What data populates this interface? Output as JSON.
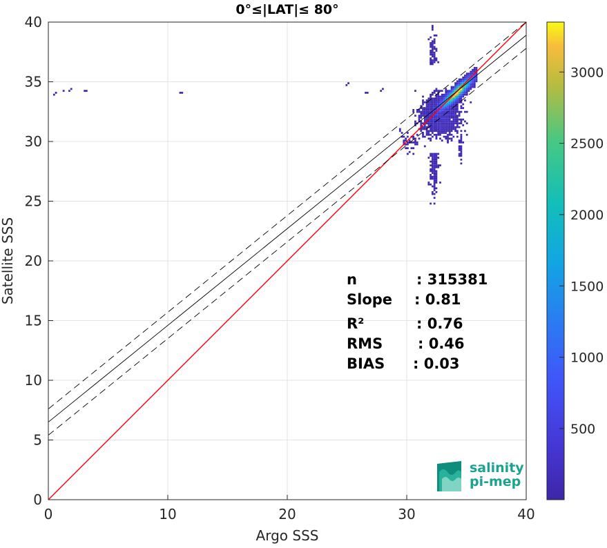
{
  "chart_data": {
    "type": "heatmap",
    "title": "0°≤|LAT|≤ 80°",
    "xlabel": "Argo SSS",
    "ylabel": "Satellite SSS",
    "xlim": [
      0,
      40
    ],
    "ylim": [
      0,
      40
    ],
    "xticks": [
      0,
      10,
      20,
      30,
      40
    ],
    "yticks": [
      0,
      5,
      10,
      15,
      20,
      25,
      30,
      35,
      40
    ],
    "grid": true,
    "colormap": "parula",
    "colorbar": {
      "min": 1,
      "max": 3350,
      "ticks": [
        500,
        1000,
        1500,
        2000,
        2500,
        3000
      ]
    },
    "density": {
      "main_cluster": {
        "center_x": 34.5,
        "center_y": 34.4,
        "peak_count": 3350
      },
      "spread_x": [
        30.5,
        36
      ],
      "spread_y": [
        24.8,
        40
      ],
      "outlier_points": [
        [
          0.5,
          33.9
        ],
        [
          1.2,
          34.2
        ],
        [
          1.8,
          34.3
        ],
        [
          3.0,
          34.2
        ],
        [
          11.0,
          34.0
        ],
        [
          25.0,
          34.8
        ],
        [
          26.5,
          34.0
        ],
        [
          27.8,
          34.3
        ]
      ]
    },
    "lines": [
      {
        "name": "one-to-one",
        "color": "#ff0000",
        "style": "solid",
        "slope": 1.0,
        "intercept": 0.0
      },
      {
        "name": "regression",
        "color": "#000000",
        "style": "solid",
        "slope": 0.81,
        "intercept": 6.5
      },
      {
        "name": "regression-plus-band",
        "color": "#000000",
        "style": "dashed",
        "slope": 0.81,
        "intercept": 7.6
      },
      {
        "name": "regression-minus-band",
        "color": "#000000",
        "style": "dashed",
        "slope": 0.81,
        "intercept": 5.4
      }
    ],
    "stats": [
      {
        "label": "n",
        "value": ": 315381"
      },
      {
        "label": "Slope",
        "value": ": 0.81"
      },
      {
        "label": "R²",
        "value": ": 0.76"
      },
      {
        "label": "RMS",
        "value": ": 0.46"
      },
      {
        "label": "BIAS",
        "value": ": 0.03"
      }
    ]
  },
  "logo": {
    "line1": "salinity",
    "line2": "pi-mep",
    "color": "#1aa38f"
  }
}
